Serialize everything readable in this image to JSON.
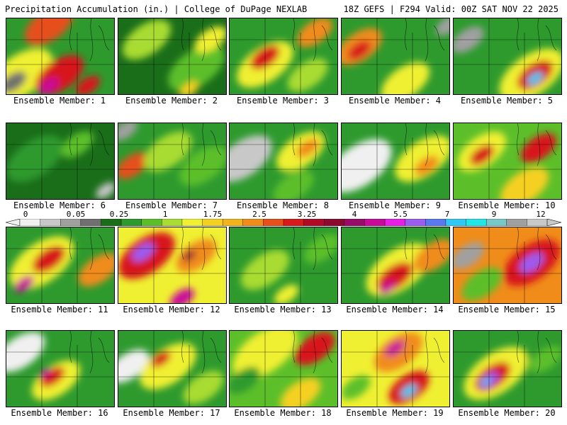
{
  "header": {
    "title": "Precipitation Accumulation (in.) | College of DuPage NEXLAB",
    "valid": "18Z GEFS | F294 Valid: 00Z SAT NOV 22 2025"
  },
  "colorbar": {
    "tick_labels": [
      "0",
      "0.05",
      "0.25",
      "1",
      "1.75",
      "2.5",
      "3.25",
      "4",
      "5.5",
      "7",
      "9",
      "12"
    ],
    "colors": [
      "#f0f0f0",
      "#c8c8c8",
      "#a0a0a0",
      "#707070",
      "#1a6e1a",
      "#2e9a2e",
      "#5cbf2a",
      "#a9dc32",
      "#f0f032",
      "#f5d020",
      "#f2b31c",
      "#f08c1a",
      "#e6501a",
      "#d7191c",
      "#b00a26",
      "#8c0a30",
      "#9a0a68",
      "#c80a9a",
      "#e61ee6",
      "#9b5cf0",
      "#5a78f0",
      "#32c8f5",
      "#20e6e6",
      "#78c8c8",
      "#a0a0a0",
      "#c8c8c8"
    ]
  },
  "panels": [
    {
      "label": "Ensemble Member: 1",
      "base": "#2e9a2e",
      "blobs": [
        {
          "x": 20,
          "y": 80,
          "r": 40,
          "c": "#f0f032"
        },
        {
          "x": 60,
          "y": 10,
          "r": 30,
          "c": "#e6501a"
        },
        {
          "x": 75,
          "y": 80,
          "r": 30,
          "c": "#d7191c"
        },
        {
          "x": 60,
          "y": 95,
          "r": 12,
          "c": "#c80a9a"
        },
        {
          "x": 115,
          "y": 95,
          "r": 15,
          "c": "#d7191c"
        },
        {
          "x": 10,
          "y": 90,
          "r": 16,
          "c": "#707070"
        }
      ]
    },
    {
      "label": "Ensemble Member: 2",
      "base": "#1a6e1a",
      "blobs": [
        {
          "x": 40,
          "y": 30,
          "r": 30,
          "c": "#a9dc32"
        },
        {
          "x": 110,
          "y": 70,
          "r": 35,
          "c": "#5cbf2a"
        },
        {
          "x": 130,
          "y": 30,
          "r": 20,
          "c": "#f0f032"
        },
        {
          "x": 100,
          "y": 100,
          "r": 12,
          "c": "#f5d020"
        }
      ]
    },
    {
      "label": "Ensemble Member: 3",
      "base": "#2e9a2e",
      "blobs": [
        {
          "x": 50,
          "y": 65,
          "r": 35,
          "c": "#f0f032"
        },
        {
          "x": 50,
          "y": 55,
          "r": 18,
          "c": "#d7191c"
        },
        {
          "x": 120,
          "y": 20,
          "r": 22,
          "c": "#f08c1a"
        },
        {
          "x": 110,
          "y": 80,
          "r": 25,
          "c": "#a9dc32"
        }
      ]
    },
    {
      "label": "Ensemble Member: 4",
      "base": "#2e9a2e",
      "blobs": [
        {
          "x": 25,
          "y": 40,
          "r": 28,
          "c": "#f08c1a"
        },
        {
          "x": 25,
          "y": 45,
          "r": 14,
          "c": "#d7191c"
        },
        {
          "x": 90,
          "y": 90,
          "r": 30,
          "c": "#f0f032"
        },
        {
          "x": 150,
          "y": 10,
          "r": 15,
          "c": "#a0a0a0"
        }
      ]
    },
    {
      "label": "Ensemble Member: 5",
      "base": "#2e9a2e",
      "blobs": [
        {
          "x": 110,
          "y": 80,
          "r": 40,
          "c": "#f0f032"
        },
        {
          "x": 115,
          "y": 80,
          "r": 22,
          "c": "#d7191c"
        },
        {
          "x": 115,
          "y": 85,
          "r": 10,
          "c": "#32c8f5"
        },
        {
          "x": 20,
          "y": 30,
          "r": 20,
          "c": "#a0a0a0"
        }
      ]
    },
    {
      "label": "Ensemble Member: 6",
      "base": "#1a6e1a",
      "blobs": [
        {
          "x": 40,
          "y": 50,
          "r": 35,
          "c": "#2e9a2e"
        },
        {
          "x": 100,
          "y": 30,
          "r": 20,
          "c": "#5cbf2a"
        },
        {
          "x": 140,
          "y": 95,
          "r": 12,
          "c": "#c8c8c8"
        }
      ]
    },
    {
      "label": "Ensemble Member: 7",
      "base": "#2e9a2e",
      "blobs": [
        {
          "x": 20,
          "y": 60,
          "r": 20,
          "c": "#e6501a"
        },
        {
          "x": 70,
          "y": 40,
          "r": 30,
          "c": "#a9dc32"
        },
        {
          "x": 10,
          "y": 10,
          "r": 15,
          "c": "#a0a0a0"
        },
        {
          "x": 120,
          "y": 60,
          "r": 30,
          "c": "#5cbf2a"
        }
      ]
    },
    {
      "label": "Ensemble Member: 8",
      "base": "#2e9a2e",
      "blobs": [
        {
          "x": 20,
          "y": 50,
          "r": 35,
          "c": "#c8c8c8"
        },
        {
          "x": 100,
          "y": 40,
          "r": 30,
          "c": "#f0f032"
        },
        {
          "x": 110,
          "y": 35,
          "r": 14,
          "c": "#f08c1a"
        },
        {
          "x": 90,
          "y": 90,
          "r": 25,
          "c": "#5cbf2a"
        }
      ]
    },
    {
      "label": "Ensemble Member: 9",
      "base": "#2e9a2e",
      "blobs": [
        {
          "x": 25,
          "y": 60,
          "r": 40,
          "c": "#f0f0f0"
        },
        {
          "x": 115,
          "y": 50,
          "r": 35,
          "c": "#f0f032"
        },
        {
          "x": 120,
          "y": 60,
          "r": 15,
          "c": "#f08c1a"
        }
      ]
    },
    {
      "label": "Ensemble Member: 10",
      "base": "#5cbf2a",
      "blobs": [
        {
          "x": 40,
          "y": 40,
          "r": 30,
          "c": "#f0f032"
        },
        {
          "x": 40,
          "y": 45,
          "r": 15,
          "c": "#d7191c"
        },
        {
          "x": 120,
          "y": 35,
          "r": 22,
          "c": "#d7191c"
        },
        {
          "x": 100,
          "y": 90,
          "r": 30,
          "c": "#f5d020"
        }
      ]
    },
    {
      "label": "Ensemble Member: 11",
      "base": "#2e9a2e",
      "blobs": [
        {
          "x": 50,
          "y": 50,
          "r": 40,
          "c": "#f0f032"
        },
        {
          "x": 60,
          "y": 45,
          "r": 20,
          "c": "#d7191c"
        },
        {
          "x": 25,
          "y": 80,
          "r": 12,
          "c": "#c80a9a"
        },
        {
          "x": 130,
          "y": 60,
          "r": 25,
          "c": "#f08c1a"
        }
      ]
    },
    {
      "label": "Ensemble Member: 12",
      "base": "#f0f032",
      "blobs": [
        {
          "x": 40,
          "y": 40,
          "r": 35,
          "c": "#d7191c"
        },
        {
          "x": 35,
          "y": 35,
          "r": 14,
          "c": "#9b5cf0"
        },
        {
          "x": 110,
          "y": 40,
          "r": 25,
          "c": "#f08c1a"
        },
        {
          "x": 100,
          "y": 40,
          "r": 8,
          "c": "#8c0a30"
        },
        {
          "x": 90,
          "y": 100,
          "r": 15,
          "c": "#c80a9a"
        }
      ]
    },
    {
      "label": "Ensemble Member: 13",
      "base": "#2e9a2e",
      "blobs": [
        {
          "x": 50,
          "y": 60,
          "r": 30,
          "c": "#a9dc32"
        },
        {
          "x": 130,
          "y": 30,
          "r": 22,
          "c": "#5cbf2a"
        },
        {
          "x": 80,
          "y": 95,
          "r": 15,
          "c": "#f0f032"
        }
      ]
    },
    {
      "label": "Ensemble Member: 14",
      "base": "#2e9a2e",
      "blobs": [
        {
          "x": 80,
          "y": 60,
          "r": 40,
          "c": "#f0f032"
        },
        {
          "x": 75,
          "y": 70,
          "r": 22,
          "c": "#d7191c"
        },
        {
          "x": 65,
          "y": 85,
          "r": 10,
          "c": "#c80a9a"
        },
        {
          "x": 130,
          "y": 40,
          "r": 25,
          "c": "#f08c1a"
        }
      ]
    },
    {
      "label": "Ensemble Member: 15",
      "base": "#f08c1a",
      "blobs": [
        {
          "x": 110,
          "y": 50,
          "r": 35,
          "c": "#d7191c"
        },
        {
          "x": 110,
          "y": 50,
          "r": 15,
          "c": "#9b5cf0"
        },
        {
          "x": 20,
          "y": 40,
          "r": 20,
          "c": "#a0a0a0"
        },
        {
          "x": 40,
          "y": 80,
          "r": 25,
          "c": "#5cbf2a"
        }
      ]
    },
    {
      "label": "Ensemble Member: 16",
      "base": "#2e9a2e",
      "blobs": [
        {
          "x": 20,
          "y": 30,
          "r": 30,
          "c": "#f0f0f0"
        },
        {
          "x": 70,
          "y": 70,
          "r": 30,
          "c": "#f0f032"
        },
        {
          "x": 65,
          "y": 65,
          "r": 15,
          "c": "#d7191c"
        },
        {
          "x": 55,
          "y": 60,
          "r": 7,
          "c": "#c80a9a"
        }
      ]
    },
    {
      "label": "Ensemble Member: 17",
      "base": "#2e9a2e",
      "blobs": [
        {
          "x": 15,
          "y": 50,
          "r": 25,
          "c": "#f0f0f0"
        },
        {
          "x": 70,
          "y": 50,
          "r": 35,
          "c": "#f0f032"
        },
        {
          "x": 60,
          "y": 40,
          "r": 12,
          "c": "#d7191c"
        },
        {
          "x": 120,
          "y": 80,
          "r": 25,
          "c": "#a9dc32"
        }
      ]
    },
    {
      "label": "Ensemble Member: 18",
      "base": "#5cbf2a",
      "blobs": [
        {
          "x": 50,
          "y": 30,
          "r": 40,
          "c": "#f0f032"
        },
        {
          "x": 120,
          "y": 25,
          "r": 25,
          "c": "#d7191c"
        },
        {
          "x": 20,
          "y": 70,
          "r": 20,
          "c": "#2e9a2e"
        },
        {
          "x": 100,
          "y": 90,
          "r": 25,
          "c": "#f5d020"
        }
      ]
    },
    {
      "label": "Ensemble Member: 19",
      "base": "#f0f032",
      "blobs": [
        {
          "x": 80,
          "y": 30,
          "r": 30,
          "c": "#f08c1a"
        },
        {
          "x": 75,
          "y": 25,
          "r": 12,
          "c": "#c80a9a"
        },
        {
          "x": 95,
          "y": 80,
          "r": 25,
          "c": "#d7191c"
        },
        {
          "x": 95,
          "y": 85,
          "r": 10,
          "c": "#32c8f5"
        },
        {
          "x": 20,
          "y": 80,
          "r": 18,
          "c": "#5cbf2a"
        }
      ]
    },
    {
      "label": "Ensemble Member: 20",
      "base": "#2e9a2e",
      "blobs": [
        {
          "x": 60,
          "y": 60,
          "r": 40,
          "c": "#f0f032"
        },
        {
          "x": 55,
          "y": 65,
          "r": 22,
          "c": "#d7191c"
        },
        {
          "x": 50,
          "y": 70,
          "r": 12,
          "c": "#9b5cf0"
        },
        {
          "x": 45,
          "y": 72,
          "r": 6,
          "c": "#32c8f5"
        },
        {
          "x": 130,
          "y": 40,
          "r": 20,
          "c": "#5cbf2a"
        }
      ]
    }
  ]
}
